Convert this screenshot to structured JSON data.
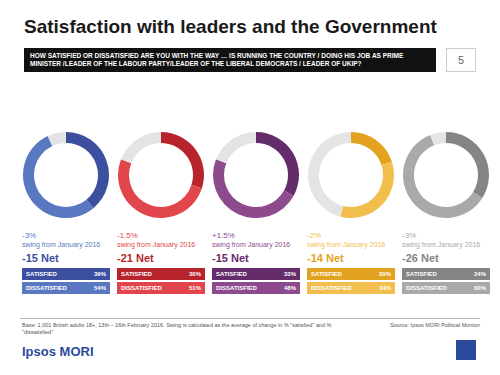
{
  "title": "Satisfaction with leaders and the Government",
  "subtitle": "HOW SATISFIED OR DISSATISFIED ARE YOU WITH THE WAY … IS RUNNING THE COUNTRY / DOING HIS JOB AS PRIME MINISTER /LEADER OF THE LABOUR PARTY/LEADER OF THE LIBERAL DEMOCRATS / LEADER OF UKIP?",
  "page_number": 5,
  "chart_data": [
    {
      "type": "pie",
      "swing": "-3%",
      "swing_text": "swing from January 2016",
      "net": "-15 Net",
      "categories": [
        "SATISFIED",
        "DISSATISFIED"
      ],
      "values": [
        39,
        54
      ],
      "value_labels": [
        "39%",
        "54%"
      ],
      "data_labels": true,
      "colors": [
        "#3d4f9f",
        "#5a78c2"
      ]
    },
    {
      "type": "pie",
      "swing": "-1.5%",
      "swing_text": "swing from January 2016",
      "net": "-21 Net",
      "categories": [
        "SATISFIED",
        "DISSATISFIED"
      ],
      "values": [
        30,
        51
      ],
      "value_labels": [
        "30%",
        "51%"
      ],
      "data_labels": true,
      "colors": [
        "#b8242b",
        "#e0464c"
      ]
    },
    {
      "type": "pie",
      "swing": "+1.5%",
      "swing_text": "swing from January 2016",
      "net": "-15 Net",
      "categories": [
        "SATISFIED",
        "DISSATISFIED"
      ],
      "values": [
        33,
        48
      ],
      "value_labels": [
        "33%",
        "48%"
      ],
      "data_labels": true,
      "colors": [
        "#652c6c",
        "#8d4b8e"
      ]
    },
    {
      "type": "pie",
      "swing": "-2%",
      "swing_text": "swing from January 2016",
      "net": "-14 Net",
      "categories": [
        "SATISFIED",
        "DISSATISFIED"
      ],
      "values": [
        20,
        34
      ],
      "value_labels": [
        "20%",
        "34%"
      ],
      "data_labels": true,
      "colors": [
        "#e3a21f",
        "#f2be4e"
      ]
    },
    {
      "type": "pie",
      "swing": "-3%",
      "swing_text": "swing from January 2016",
      "net": "-26 Net",
      "categories": [
        "SATISFIED",
        "DISSATISFIED"
      ],
      "values": [
        34,
        60
      ],
      "value_labels": [
        "34%",
        "60%"
      ],
      "data_labels": true,
      "colors": [
        "#858585",
        "#a9a9a9"
      ]
    }
  ],
  "footer": {
    "base": "Base: 1,001 British adults 18+, 13th – 16th February 2016. Swing is calculated as the average of change in % \"satisfied\" and % \"dissatisfied\"",
    "source": "Source: Ipsos MORI Political Monitor"
  },
  "logo": "Ipsos MORI"
}
